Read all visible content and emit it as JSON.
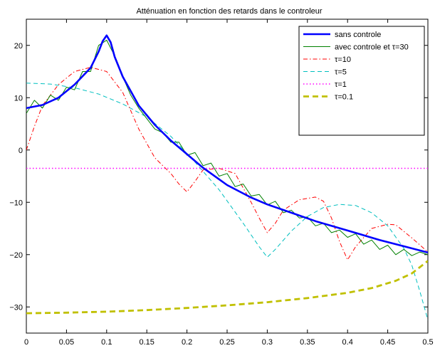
{
  "chart_data": {
    "type": "line",
    "title": "Atténuation en fonction des retards dans le controleur",
    "xlabel": "",
    "ylabel": "",
    "xlim": [
      0,
      0.5
    ],
    "ylim": [
      -35,
      25
    ],
    "grid": false,
    "legend_position": "top-right",
    "x_ticks": [
      "0",
      "0.05",
      "0.1",
      "0.15",
      "0.2",
      "0.25",
      "0.3",
      "0.35",
      "0.4",
      "0.45",
      "0.5"
    ],
    "y_ticks": [
      "20",
      "10",
      "0",
      "−10",
      "−20",
      "−30"
    ],
    "x_tick_values": [
      0,
      0.05,
      0.1,
      0.15,
      0.2,
      0.25,
      0.3,
      0.35,
      0.4,
      0.45,
      0.5
    ],
    "y_tick_values": [
      20,
      10,
      0,
      -10,
      -20,
      -30
    ],
    "series": [
      {
        "name": "sans controle",
        "color": "#0000ff",
        "style": "solid-thick",
        "x": [
          0,
          0.02,
          0.04,
          0.06,
          0.08,
          0.09,
          0.095,
          0.1,
          0.105,
          0.11,
          0.12,
          0.14,
          0.16,
          0.18,
          0.2,
          0.22,
          0.25,
          0.28,
          0.3,
          0.33,
          0.36,
          0.4,
          0.44,
          0.47,
          0.5
        ],
        "y": [
          8,
          8.6,
          10,
          12.5,
          15.7,
          18.8,
          20.8,
          21.9,
          20.6,
          17.8,
          14,
          8.5,
          4.8,
          1.8,
          -0.8,
          -3.4,
          -6.7,
          -9.1,
          -10.4,
          -12,
          -13.6,
          -15.4,
          -17.2,
          -18.4,
          -19.6
        ]
      },
      {
        "name": "avec controle et τ=30",
        "color": "#008000",
        "style": "solid-thin",
        "x": [
          0,
          0.01,
          0.02,
          0.03,
          0.04,
          0.05,
          0.06,
          0.07,
          0.08,
          0.09,
          0.1,
          0.11,
          0.12,
          0.13,
          0.14,
          0.15,
          0.16,
          0.17,
          0.18,
          0.19,
          0.2,
          0.21,
          0.22,
          0.23,
          0.24,
          0.25,
          0.26,
          0.27,
          0.28,
          0.29,
          0.3,
          0.31,
          0.32,
          0.33,
          0.34,
          0.35,
          0.36,
          0.37,
          0.38,
          0.39,
          0.4,
          0.41,
          0.42,
          0.43,
          0.44,
          0.45,
          0.46,
          0.47,
          0.48,
          0.49,
          0.5
        ],
        "y": [
          7,
          9.5,
          8,
          10.5,
          9.5,
          12,
          11.5,
          15,
          15,
          20,
          21,
          18,
          14,
          10.5,
          8,
          6,
          4,
          3.3,
          1.5,
          1.5,
          -1,
          -0.5,
          -3,
          -2.5,
          -5,
          -4.5,
          -7,
          -6.5,
          -8.8,
          -8.5,
          -10.5,
          -9.8,
          -12,
          -11.5,
          -13,
          -12.8,
          -14.5,
          -14,
          -15.8,
          -15.3,
          -16.7,
          -16,
          -18,
          -17.2,
          -19,
          -18.2,
          -20,
          -19,
          -20.2,
          -19.5,
          -20
        ]
      },
      {
        "name": "τ=10",
        "color": "#ff0000",
        "style": "dashdot",
        "x": [
          0,
          0.01,
          0.02,
          0.04,
          0.06,
          0.08,
          0.1,
          0.12,
          0.14,
          0.16,
          0.18,
          0.19,
          0.2,
          0.21,
          0.22,
          0.24,
          0.26,
          0.28,
          0.29,
          0.3,
          0.31,
          0.32,
          0.34,
          0.36,
          0.37,
          0.38,
          0.39,
          0.4,
          0.41,
          0.43,
          0.45,
          0.46,
          0.48,
          0.5
        ],
        "y": [
          0,
          4.5,
          8.5,
          12.5,
          15,
          15.8,
          15,
          11,
          4,
          -1.5,
          -4.5,
          -6.5,
          -8,
          -6,
          -3.8,
          -3.5,
          -4.5,
          -10,
          -13,
          -15.8,
          -14,
          -11.5,
          -9.5,
          -9,
          -9.8,
          -13,
          -17.5,
          -21,
          -18.5,
          -15,
          -14.2,
          -14.3,
          -16.8,
          -19.5
        ]
      },
      {
        "name": "τ=5",
        "color": "#00bfbf",
        "style": "dashed",
        "x": [
          0,
          0.03,
          0.06,
          0.09,
          0.12,
          0.15,
          0.18,
          0.21,
          0.24,
          0.27,
          0.29,
          0.3,
          0.31,
          0.33,
          0.35,
          0.37,
          0.39,
          0.41,
          0.43,
          0.45,
          0.47,
          0.48,
          0.49,
          0.5
        ],
        "y": [
          12.8,
          12.6,
          11.9,
          10.7,
          8.8,
          6.3,
          2.6,
          -2.3,
          -7.6,
          -14,
          -18.5,
          -20.5,
          -19,
          -15.5,
          -12.7,
          -11,
          -10.4,
          -10.6,
          -12,
          -14.5,
          -18.8,
          -22,
          -27,
          -32.5
        ]
      },
      {
        "name": "τ=1",
        "color": "#ff00ff",
        "style": "dotted",
        "x": [
          0,
          0.5
        ],
        "y": [
          -3.5,
          -3.5
        ]
      },
      {
        "name": "τ=0.1",
        "color": "#c0c000",
        "style": "dashed-thick",
        "x": [
          0,
          0.05,
          0.1,
          0.15,
          0.2,
          0.25,
          0.3,
          0.35,
          0.4,
          0.43,
          0.46,
          0.48,
          0.5
        ],
        "y": [
          -31.2,
          -31.1,
          -30.9,
          -30.6,
          -30.2,
          -29.7,
          -29.1,
          -28.3,
          -27.3,
          -26.4,
          -25,
          -23.6,
          -21.2
        ]
      }
    ]
  }
}
